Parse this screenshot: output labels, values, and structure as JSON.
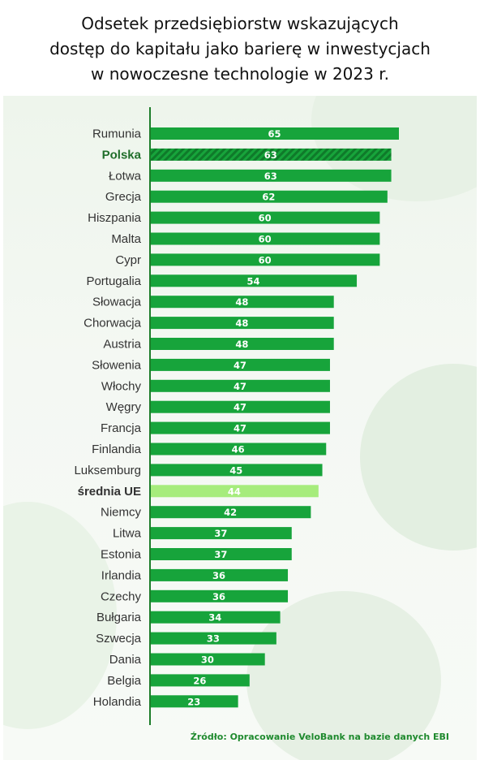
{
  "title_lines": [
    "Odsetek przedsiębiorstw wskazujących",
    "dostęp do kapitału jako barierę w inwestycjach",
    "w nowoczesne technologie w 2023 r."
  ],
  "source": "Źródło: Opracowanie VeloBank na bazie danych EBI",
  "colors": {
    "bar": "#17a43b",
    "bar_highlight_hatch": "#0f7a2a",
    "bar_average": "#a6ec7c",
    "axis": "#1d7d2a",
    "label": "#333333",
    "label_highlight": "#1f6e2a"
  },
  "chart_data": {
    "type": "bar",
    "orientation": "horizontal",
    "title": "Odsetek przedsiębiorstw wskazujących dostęp do kapitału jako barierę w inwestycjach w nowoczesne technologie w 2023 r.",
    "categories": [
      "Rumunia",
      "Polska",
      "Łotwa",
      "Grecja",
      "Hiszpania",
      "Malta",
      "Cypr",
      "Portugalia",
      "Słowacja",
      "Chorwacja",
      "Austria",
      "Słowenia",
      "Włochy",
      "Węgry",
      "Francja",
      "Finlandia",
      "Luksemburg",
      "średnia UE",
      "Niemcy",
      "Litwa",
      "Estonia",
      "Irlandia",
      "Czechy",
      "Bułgaria",
      "Szwecja",
      "Dania",
      "Belgia",
      "Holandia"
    ],
    "values": [
      65,
      63,
      63,
      62,
      60,
      60,
      60,
      54,
      48,
      48,
      48,
      47,
      47,
      47,
      47,
      46,
      45,
      44,
      42,
      37,
      37,
      36,
      36,
      34,
      33,
      30,
      26,
      23
    ],
    "highlight": [
      "Polska"
    ],
    "average_category": "średnia UE",
    "xlim": [
      0,
      65
    ],
    "data_labels": true,
    "grid": false,
    "legend": "none"
  }
}
